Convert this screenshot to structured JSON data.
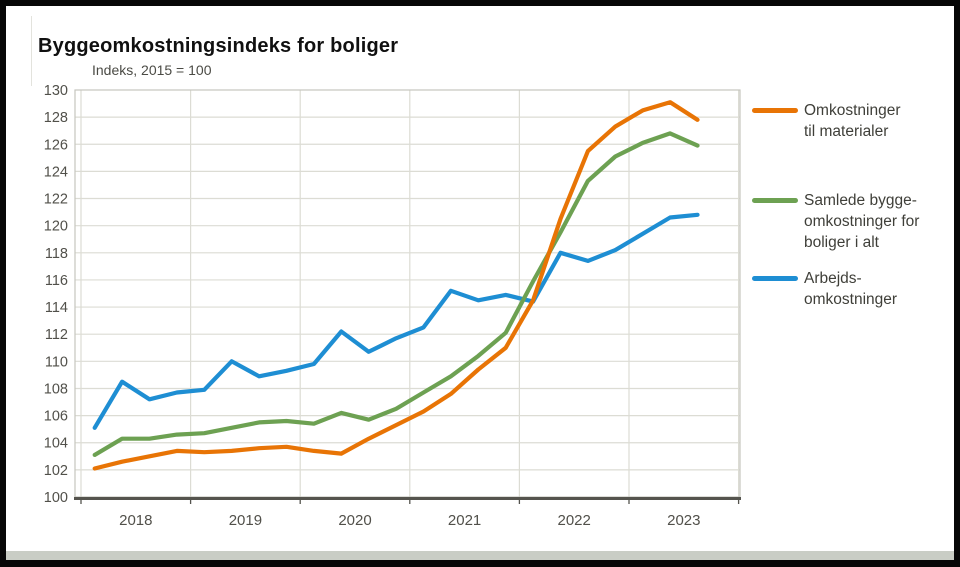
{
  "title": "Byggeomkostningsindeks for boliger",
  "subtitle": "Indeks, 2015 = 100",
  "colors": {
    "gridline": "#dcdcd4",
    "plot_border": "#c6c6bf",
    "axis": "#55544e",
    "tick_text": "#51504a",
    "scrollbar_track": "#c9cdc5"
  },
  "chart_data": {
    "type": "line",
    "title": "Byggeomkostningsindeks for boliger",
    "subtitle": "Indeks, 2015 = 100",
    "x_unit": "quarter",
    "x": [
      "2018 K1",
      "2018 K2",
      "2018 K3",
      "2018 K4",
      "2019 K1",
      "2019 K2",
      "2019 K3",
      "2019 K4",
      "2020 K1",
      "2020 K2",
      "2020 K3",
      "2020 K4",
      "2021 K1",
      "2021 K2",
      "2021 K3",
      "2021 K4",
      "2022 K1",
      "2022 K2",
      "2022 K3",
      "2022 K4",
      "2023 K1",
      "2023 K2",
      "2023 K3"
    ],
    "x_axis_tick_labels": [
      "2018",
      "2019",
      "2020",
      "2021",
      "2022",
      "2023"
    ],
    "y_axis": {
      "min": 100,
      "max": 130,
      "tick_step": 2,
      "tick_labels": [
        "100",
        "102",
        "104",
        "106",
        "108",
        "110",
        "112",
        "114",
        "116",
        "118",
        "120",
        "122",
        "124",
        "126",
        "128",
        "130"
      ]
    },
    "grid": true,
    "legend_position": "right",
    "series": [
      {
        "id": "materialer",
        "name": "Omkostninger til materialer",
        "legend_label": "Omkostninger\ntil materialer",
        "color": "#e87405",
        "values": [
          102.1,
          102.6,
          103.0,
          103.4,
          103.3,
          103.4,
          103.6,
          103.7,
          103.4,
          103.2,
          104.3,
          105.3,
          106.3,
          107.6,
          109.4,
          111.0,
          114.5,
          120.5,
          125.5,
          127.3,
          128.5,
          129.1,
          127.8
        ]
      },
      {
        "id": "samlede",
        "name": "Samlede byggeomkostninger for boliger i alt",
        "legend_label": "Samlede bygge-\nomkostninger for\nboliger i alt",
        "color": "#6da152",
        "values": [
          103.1,
          104.3,
          104.3,
          104.6,
          104.7,
          105.1,
          105.5,
          105.6,
          105.4,
          106.2,
          105.7,
          106.5,
          107.7,
          108.9,
          110.4,
          112.1,
          115.9,
          119.5,
          123.3,
          125.1,
          126.1,
          126.8,
          125.9
        ]
      },
      {
        "id": "arbejds",
        "name": "Arbejdsomkostninger",
        "legend_label": "Arbejds-\nomkostninger",
        "color": "#1e8ed3",
        "values": [
          105.1,
          108.5,
          107.2,
          107.7,
          107.9,
          110.0,
          108.9,
          109.3,
          109.8,
          112.2,
          110.7,
          111.7,
          112.5,
          115.2,
          114.5,
          114.9,
          114.4,
          118.0,
          117.4,
          118.2,
          119.4,
          120.6,
          120.8
        ]
      }
    ]
  }
}
